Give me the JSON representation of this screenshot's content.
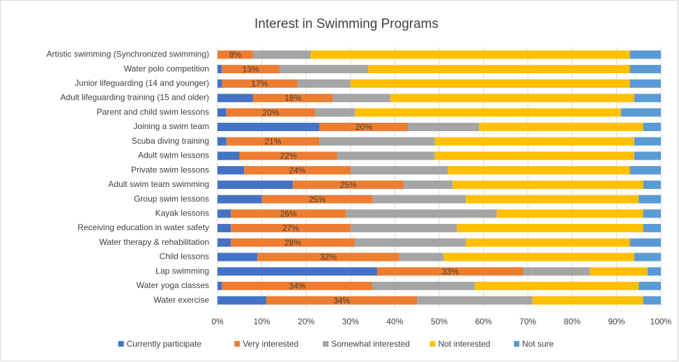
{
  "chart_data": {
    "type": "stacked_barh",
    "title": "Interest in Swimming Programs",
    "categories": [
      "Artistic swimming (Synchronized swimming)",
      "Water polo competition",
      "Junior lifeguarding (14 and younger)",
      "Adult lifeguarding training (15 and older)",
      "Parent and child swim lessons",
      "Joining a swim team",
      "Scuba diving training",
      "Adult swim lessons",
      "Private swim lessons",
      "Adult swim team swimming",
      "Group swim lessons",
      "Kayak lessons",
      "Receiving education in water safety",
      "Water therapy & rehabilitation",
      "Child lessons",
      "Lap swimming",
      "Water yoga classes",
      "Water exercise"
    ],
    "series": [
      {
        "name": "Currently participate",
        "color": "#4472c4",
        "values": [
          0,
          1,
          1,
          8,
          2,
          23,
          2,
          5,
          6,
          17,
          10,
          3,
          3,
          3,
          9,
          36,
          1,
          11
        ]
      },
      {
        "name": "Very interested",
        "color": "#ed7d31",
        "values": [
          8,
          13,
          17,
          18,
          20,
          20,
          21,
          22,
          24,
          25,
          25,
          26,
          27,
          28,
          32,
          33,
          34,
          34
        ],
        "value_labels": [
          "8%",
          "13%",
          "17%",
          "18%",
          "20%",
          "20%",
          "21%",
          "22%",
          "24%",
          "25%",
          "25%",
          "26%",
          "27%",
          "28%",
          "32%",
          "33%",
          "34%",
          "34%"
        ]
      },
      {
        "name": "Somewhat interested",
        "color": "#a5a5a5",
        "values": [
          13,
          20,
          12,
          13,
          9,
          16,
          26,
          22,
          22,
          11,
          21,
          34,
          24,
          25,
          10,
          15,
          23,
          26
        ]
      },
      {
        "name": "Not interested",
        "color": "#ffc000",
        "values": [
          72,
          59,
          63,
          55,
          60,
          37,
          45,
          45,
          41,
          43,
          39,
          33,
          42,
          37,
          43,
          13,
          37,
          25
        ]
      },
      {
        "name": "Not  sure",
        "color": "#5b9bd5",
        "values": [
          7,
          7,
          7,
          6,
          9,
          4,
          6,
          6,
          7,
          4,
          5,
          4,
          4,
          7,
          6,
          3,
          5,
          4
        ]
      }
    ],
    "xlim": [
      0,
      100
    ],
    "xticks": [
      {
        "value": 0,
        "label": "0%"
      },
      {
        "value": 10,
        "label": "10%"
      },
      {
        "value": 20,
        "label": "20%"
      },
      {
        "value": 30,
        "label": "30%"
      },
      {
        "value": 40,
        "label": "40%"
      },
      {
        "value": 50,
        "label": "50%"
      },
      {
        "value": 60,
        "label": "60%"
      },
      {
        "value": 70,
        "label": "70%"
      },
      {
        "value": 80,
        "label": "80%"
      },
      {
        "value": 90,
        "label": "90%"
      },
      {
        "value": 100,
        "label": "100%"
      }
    ],
    "grid": true,
    "legend": "bottom"
  }
}
